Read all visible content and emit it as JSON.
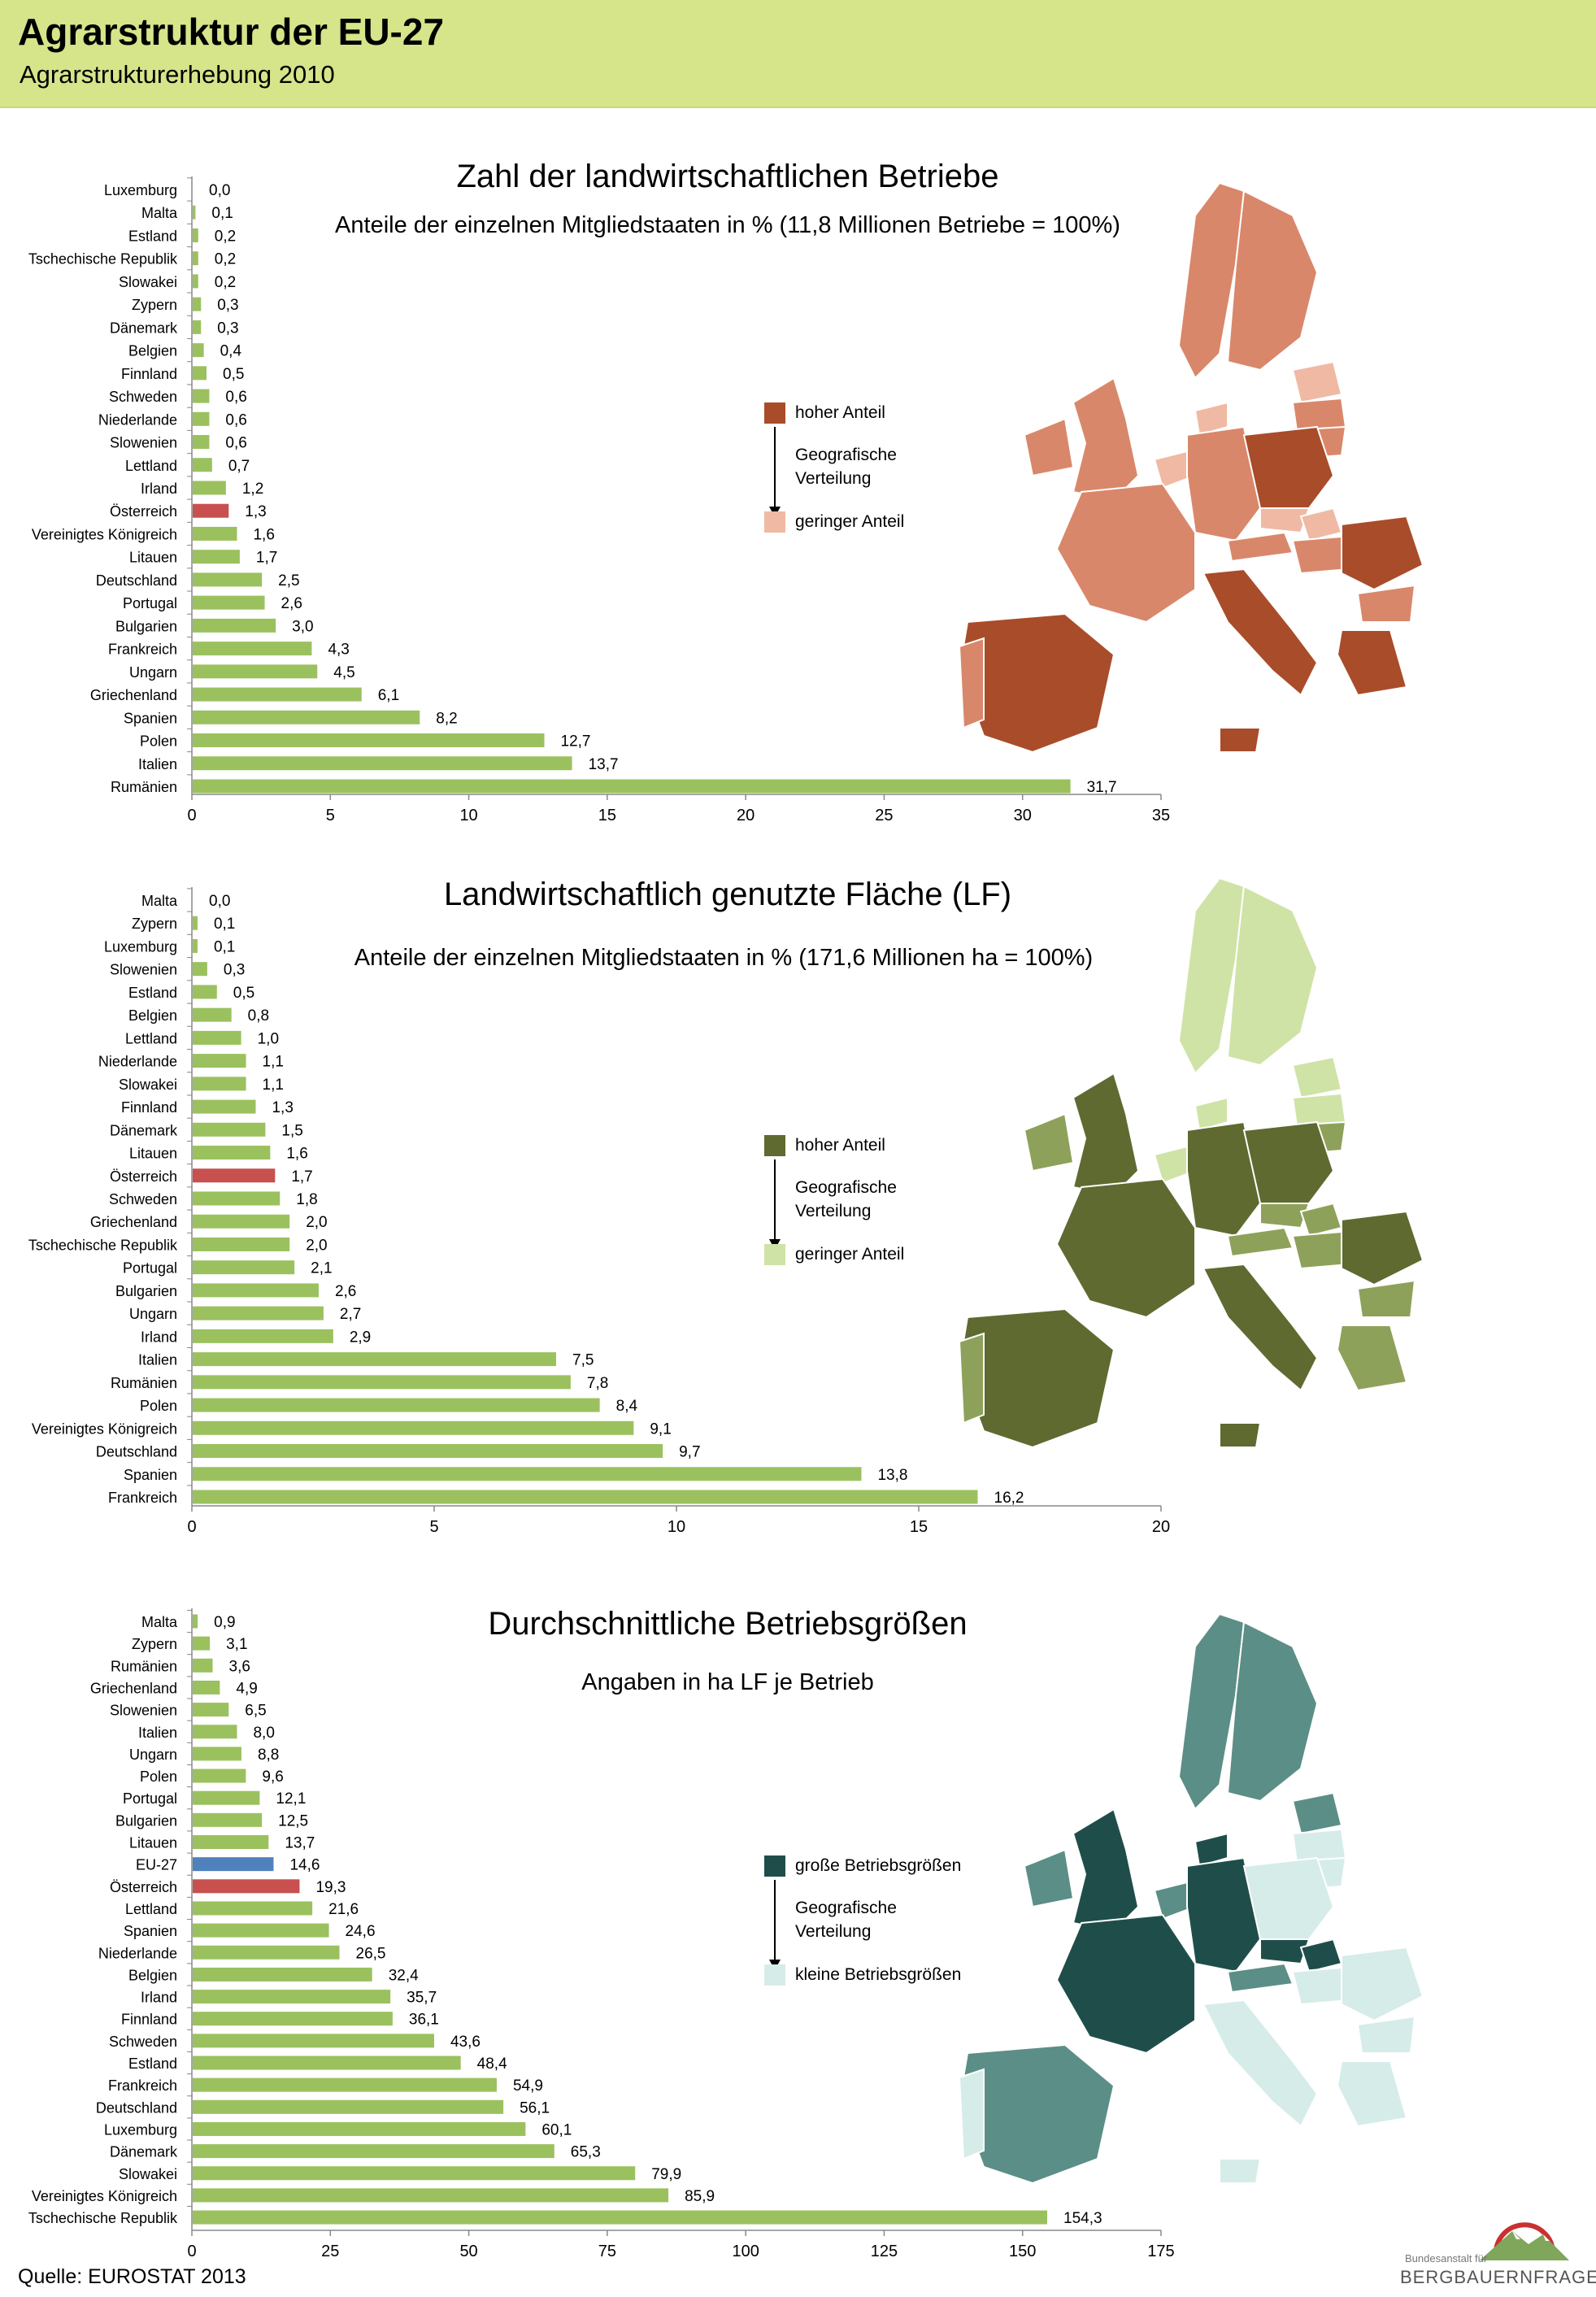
{
  "header": {
    "title": "Agrarstruktur der EU-27",
    "subtitle": "Agrarstrukturerhebung 2010"
  },
  "colors": {
    "bar_default": "#9bc15f",
    "bar_highlight_austria": "#c8504f",
    "bar_highlight_eu27": "#4f81bd",
    "header_bg": "#d6e48a",
    "map1_high": "#a94c2a",
    "map1_mid": "#d9876a",
    "map1_low": "#f0b9a4",
    "map2_high": "#5e6a30",
    "map2_mid": "#8ea15a",
    "map2_low": "#cfe3a6",
    "map3_high": "#1f4e4a",
    "map3_mid": "#5b8e86",
    "map3_low": "#d6ece9"
  },
  "chart_data": [
    {
      "type": "bar",
      "orientation": "horizontal",
      "title": "Zahl der landwirtschaftlichen Betriebe",
      "subtitle": "Anteile der einzelnen Mitgliedstaaten in % (11,8 Millionen Betriebe = 100%)",
      "categories": [
        "Luxemburg",
        "Malta",
        "Estland",
        "Tschechische Republik",
        "Slowakei",
        "Zypern",
        "Dänemark",
        "Belgien",
        "Finnland",
        "Schweden",
        "Niederlande",
        "Slowenien",
        "Lettland",
        "Irland",
        "Österreich",
        "Vereinigtes Königreich",
        "Litauen",
        "Deutschland",
        "Portugal",
        "Bulgarien",
        "Frankreich",
        "Ungarn",
        "Griechenland",
        "Spanien",
        "Polen",
        "Italien",
        "Rumänien"
      ],
      "values": [
        0.0,
        0.1,
        0.2,
        0.2,
        0.2,
        0.3,
        0.3,
        0.4,
        0.5,
        0.6,
        0.6,
        0.6,
        0.7,
        1.2,
        1.3,
        1.6,
        1.7,
        2.5,
        2.6,
        3.0,
        4.3,
        4.5,
        6.1,
        8.2,
        12.7,
        13.7,
        31.7
      ],
      "labels": [
        "0,0",
        "0,1",
        "0,2",
        "0,2",
        "0,2",
        "0,3",
        "0,3",
        "0,4",
        "0,5",
        "0,6",
        "0,6",
        "0,6",
        "0,7",
        "1,2",
        "1,3",
        "1,6",
        "1,7",
        "2,5",
        "2,6",
        "3,0",
        "4,3",
        "4,5",
        "6,1",
        "8,2",
        "12,7",
        "13,7",
        "31,7"
      ],
      "highlight": {
        "Österreich": "bar_highlight_austria"
      },
      "xlim": [
        0,
        35
      ],
      "xticks": [
        0,
        5,
        10,
        15,
        20,
        25,
        30,
        35
      ],
      "legend": {
        "high": "hoher  Anteil",
        "mid": "Geografische Verteilung",
        "low": "geringer  Anteil"
      }
    },
    {
      "type": "bar",
      "orientation": "horizontal",
      "title": "Landwirtschaftlich genutzte Fläche (LF)",
      "subtitle": "Anteile der einzelnen Mitgliedstaaten in % (171,6 Millionen ha = 100%)",
      "categories": [
        "Malta",
        "Zypern",
        "Luxemburg",
        "Slowenien",
        "Estland",
        "Belgien",
        "Lettland",
        "Niederlande",
        "Slowakei",
        "Finnland",
        "Dänemark",
        "Litauen",
        "Österreich",
        "Schweden",
        "Griechenland",
        "Tschechische Republik",
        "Portugal",
        "Bulgarien",
        "Ungarn",
        "Irland",
        "Italien",
        "Rumänien",
        "Polen",
        "Vereinigtes Königreich",
        "Deutschland",
        "Spanien",
        "Frankreich"
      ],
      "values": [
        0.0,
        0.1,
        0.1,
        0.3,
        0.5,
        0.8,
        1.0,
        1.1,
        1.1,
        1.3,
        1.5,
        1.6,
        1.7,
        1.8,
        2.0,
        2.0,
        2.1,
        2.6,
        2.7,
        2.9,
        7.5,
        7.8,
        8.4,
        9.1,
        9.7,
        13.8,
        16.2
      ],
      "labels": [
        "0,0",
        "0,1",
        "0,1",
        "0,3",
        "0,5",
        "0,8",
        "1,0",
        "1,1",
        "1,1",
        "1,3",
        "1,5",
        "1,6",
        "1,7",
        "1,8",
        "2,0",
        "2,0",
        "2,1",
        "2,6",
        "2,7",
        "2,9",
        "7,5",
        "7,8",
        "8,4",
        "9,1",
        "9,7",
        "13,8",
        "16,2"
      ],
      "highlight": {
        "Österreich": "bar_highlight_austria"
      },
      "xlim": [
        0,
        20
      ],
      "xticks": [
        0,
        5,
        10,
        15,
        20
      ],
      "legend": {
        "high": "hoher  Anteil",
        "mid": "Geografische Verteilung",
        "low": "geringer  Anteil"
      }
    },
    {
      "type": "bar",
      "orientation": "horizontal",
      "title": "Durchschnittliche Betriebsgrößen",
      "subtitle": "Angaben in ha LF je Betrieb",
      "categories": [
        "Malta",
        "Zypern",
        "Rumänien",
        "Griechenland",
        "Slowenien",
        "Italien",
        "Ungarn",
        "Polen",
        "Portugal",
        "Bulgarien",
        "Litauen",
        "EU-27",
        "Österreich",
        "Lettland",
        "Spanien",
        "Niederlande",
        "Belgien",
        "Irland",
        "Finnland",
        "Schweden",
        "Estland",
        "Frankreich",
        "Deutschland",
        "Luxemburg",
        "Dänemark",
        "Slowakei",
        "Vereinigtes Königreich",
        "Tschechische Republik"
      ],
      "values": [
        0.9,
        3.1,
        3.6,
        4.9,
        6.5,
        8.0,
        8.8,
        9.6,
        12.1,
        12.5,
        13.7,
        14.6,
        19.3,
        21.6,
        24.6,
        26.5,
        32.4,
        35.7,
        36.1,
        43.6,
        48.4,
        54.9,
        56.1,
        60.1,
        65.3,
        79.9,
        85.9,
        154.3
      ],
      "labels": [
        "0,9",
        "3,1",
        "3,6",
        "4,9",
        "6,5",
        "8,0",
        "8,8",
        "9,6",
        "12,1",
        "12,5",
        "13,7",
        "14,6",
        "19,3",
        "21,6",
        "24,6",
        "26,5",
        "32,4",
        "35,7",
        "36,1",
        "43,6",
        "48,4",
        "54,9",
        "56,1",
        "60,1",
        "65,3",
        "79,9",
        "85,9",
        "154,3"
      ],
      "highlight": {
        "Österreich": "bar_highlight_austria",
        "EU-27": "bar_highlight_eu27"
      },
      "xlim": [
        0,
        175
      ],
      "xticks": [
        0,
        25,
        50,
        75,
        100,
        125,
        150,
        175
      ],
      "legend": {
        "high": "große Betriebsgrößen",
        "mid": "Geografische Verteilung",
        "low": "kleine Betriebsgrößen"
      }
    }
  ],
  "footer": {
    "source": "Quelle: EUROSTAT 2013"
  },
  "logo": {
    "small": "Bundesanstalt für",
    "big": "BERGBAUERNFRAGEN"
  }
}
